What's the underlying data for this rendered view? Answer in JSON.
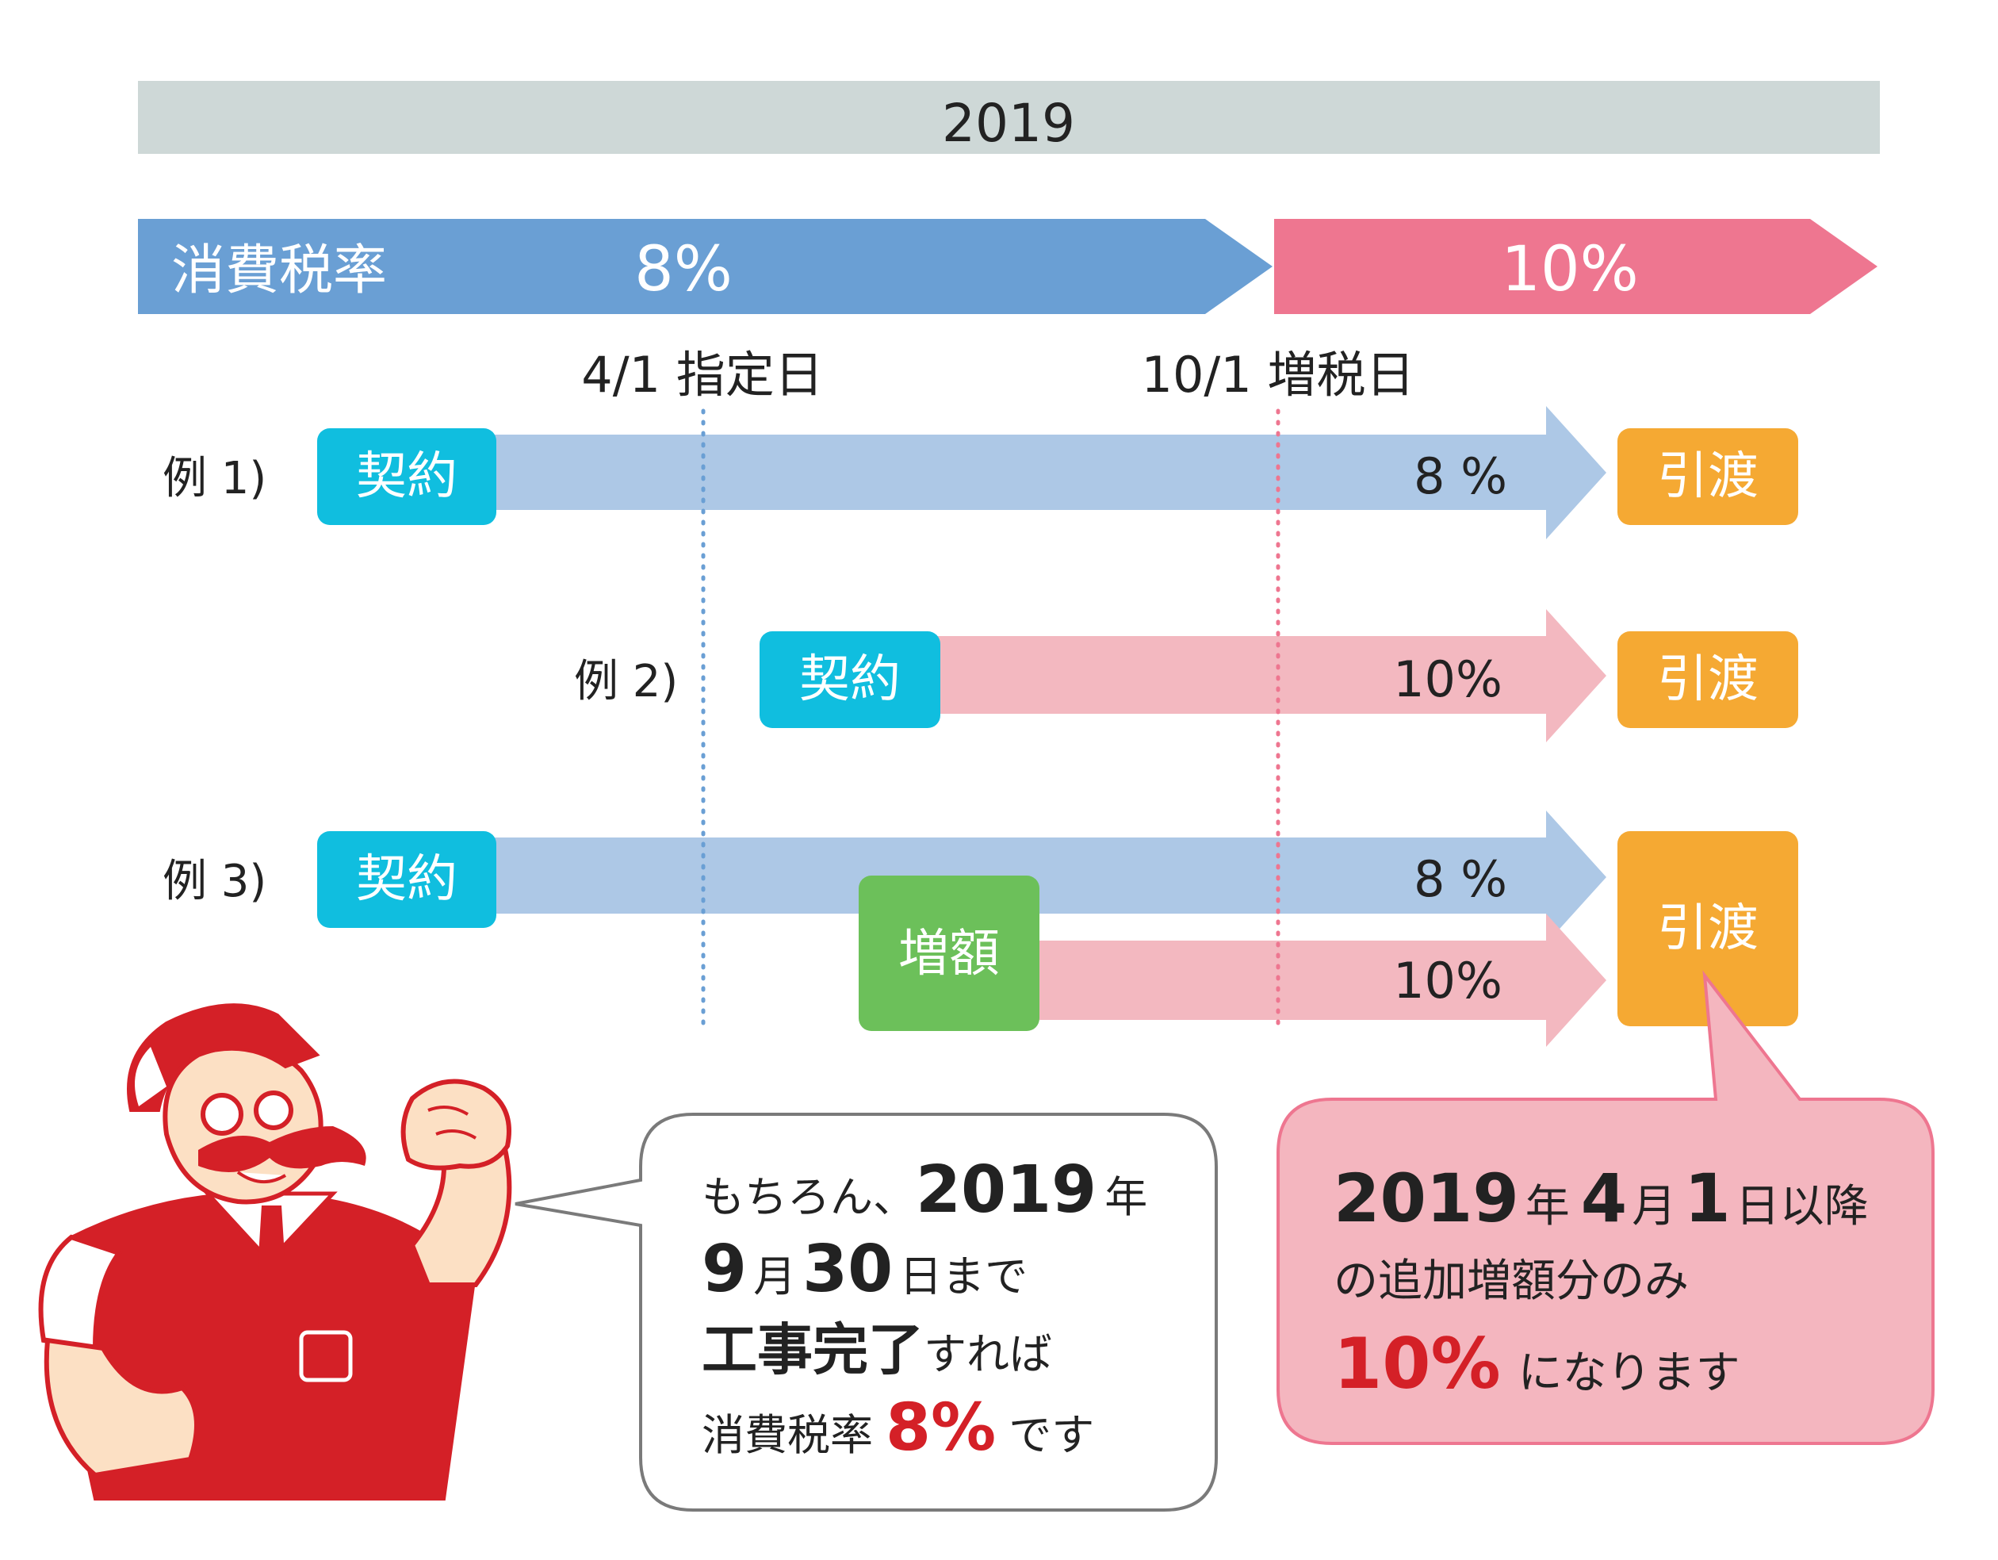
{
  "year_header": "2019",
  "tax_bar": {
    "label": "消費税率",
    "rate_before": "8%",
    "rate_after": "10%"
  },
  "markers": {
    "designated_day": "4/1 指定日",
    "tax_increase_day": "10/1 増税日"
  },
  "examples": [
    {
      "label": "例 1)",
      "contract": "契約",
      "rate": "8 %",
      "delivery": "引渡"
    },
    {
      "label": "例 2)",
      "contract": "契約",
      "rate": "10%",
      "delivery": "引渡"
    },
    {
      "label": "例 3)",
      "contract": "契約",
      "rate": "8 %",
      "increase": "増額",
      "increase_rate": "10%",
      "delivery": "引渡"
    }
  ],
  "left_bubble": {
    "l1_a": "もちろん、",
    "l1_b": "2019",
    "l1_c": "年",
    "l2_a": "9",
    "l2_b": "月",
    "l2_c": "30",
    "l2_d": "日まで",
    "l3_a": "工事完了",
    "l3_b": "すれば",
    "l4_a": "消費税率",
    "l4_b": "8%",
    "l4_c": "です"
  },
  "right_bubble": {
    "l1_a": "2019",
    "l1_b": "年",
    "l1_c": "4",
    "l1_d": "月",
    "l1_e": "1",
    "l1_f": "日以降",
    "l2": "の追加増額分のみ",
    "l3_a": "10%",
    "l3_b": "になります"
  },
  "colors": {
    "header_gray": "#ced8d7",
    "tax_blue": "#6a9fd4",
    "tax_pink": "#ee7690",
    "arrow_blue": "#adc8e6",
    "arrow_pink": "#f3b8c0",
    "contract_cyan": "#10bedf",
    "increase_green": "#6cc05a",
    "delivery_orange": "#f5a933",
    "emphasis_red": "#d42027",
    "bubble_pink": "#f4b6bf"
  },
  "icons": [
    "mascot-mechanic-icon"
  ]
}
